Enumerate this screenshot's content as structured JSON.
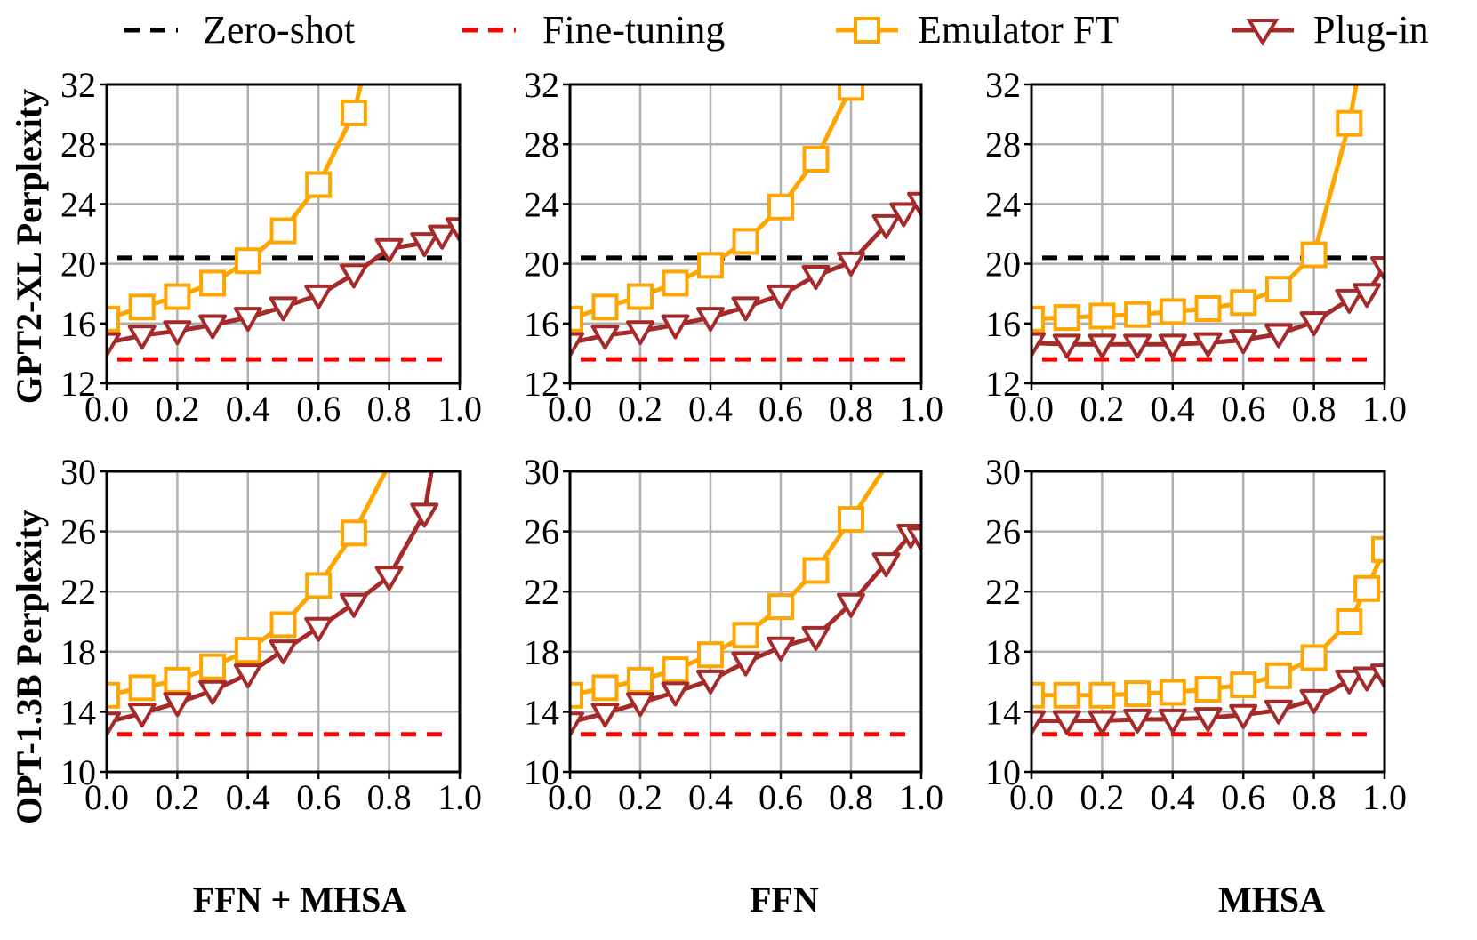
{
  "legend": [
    {
      "key": "zero_shot",
      "label": "Zero-shot"
    },
    {
      "key": "fine_tuning",
      "label": "Fine-tuning"
    },
    {
      "key": "emulator_ft",
      "label": "Emulator FT"
    },
    {
      "key": "plug_in",
      "label": "Plug-in"
    }
  ],
  "colors": {
    "zero_shot": "#000000",
    "fine_tuning": "#ff0000",
    "emulator_ft": "#ffa500",
    "plug_in": "#a52a2a",
    "grid": "#b0b0b0"
  },
  "row_labels": [
    "GPT2-XL Perplexity",
    "OPT-1.3B Perplexity"
  ],
  "column_labels": [
    "FFN + MHSA",
    "FFN",
    "MHSA"
  ],
  "chart_data": [
    {
      "type": "line",
      "title": "",
      "xlabel": "",
      "ylabel": "GPT2-XL Perplexity",
      "xlim": [
        0.0,
        1.0
      ],
      "ylim": [
        12,
        32
      ],
      "xticks": [
        0.0,
        0.2,
        0.4,
        0.6,
        0.8,
        1.0
      ],
      "xtick_labels": [
        "0.0",
        "0.2",
        "0.4",
        "0.6",
        "0.8",
        "1.0"
      ],
      "yticks": [
        12,
        16,
        20,
        24,
        28,
        32
      ],
      "ytick_labels": [
        "12",
        "16",
        "20",
        "24",
        "28",
        "32"
      ],
      "grid": true,
      "legend_position": "top",
      "reference_lines": [
        {
          "series": "Zero-shot",
          "y": 20.4
        },
        {
          "series": "Fine-tuning",
          "y": 13.6
        }
      ],
      "series": [
        {
          "name": "Emulator FT",
          "marker": "square",
          "x": [
            0.0,
            0.1,
            0.2,
            0.3,
            0.4,
            0.5,
            0.6,
            0.7,
            0.72
          ],
          "y": [
            16.3,
            17.1,
            17.8,
            18.7,
            20.2,
            22.2,
            25.3,
            30.1,
            32.0
          ],
          "markers_at": [
            0,
            1,
            2,
            3,
            4,
            5,
            6,
            7
          ]
        },
        {
          "name": "Plug-in",
          "marker": "triangle-down",
          "x": [
            0.0,
            0.1,
            0.2,
            0.3,
            0.4,
            0.5,
            0.6,
            0.7,
            0.8,
            0.9,
            0.95,
            1.0
          ],
          "y": [
            14.7,
            15.2,
            15.5,
            15.9,
            16.4,
            17.1,
            17.9,
            19.3,
            21.0,
            21.4,
            21.9,
            22.4
          ]
        }
      ]
    },
    {
      "type": "line",
      "title": "",
      "xlabel": "",
      "ylabel": "",
      "xlim": [
        0.0,
        1.0
      ],
      "ylim": [
        12,
        32
      ],
      "xticks": [
        0.0,
        0.2,
        0.4,
        0.6,
        0.8,
        1.0
      ],
      "xtick_labels": [
        "0.0",
        "0.2",
        "0.4",
        "0.6",
        "0.8",
        "1.0"
      ],
      "yticks": [
        12,
        16,
        20,
        24,
        28,
        32
      ],
      "ytick_labels": [
        "12",
        "16",
        "20",
        "24",
        "28",
        "32"
      ],
      "grid": true,
      "legend_position": "top",
      "reference_lines": [
        {
          "series": "Zero-shot",
          "y": 20.4
        },
        {
          "series": "Fine-tuning",
          "y": 13.6
        }
      ],
      "series": [
        {
          "name": "Emulator FT",
          "marker": "square",
          "x": [
            0.0,
            0.1,
            0.2,
            0.3,
            0.4,
            0.5,
            0.6,
            0.7,
            0.8
          ],
          "y": [
            16.3,
            17.1,
            17.8,
            18.7,
            19.9,
            21.5,
            23.8,
            27.0,
            31.8
          ]
        },
        {
          "name": "Plug-in",
          "marker": "triangle-down",
          "x": [
            0.0,
            0.1,
            0.2,
            0.3,
            0.4,
            0.5,
            0.6,
            0.7,
            0.8,
            0.9,
            0.95,
            1.0
          ],
          "y": [
            14.7,
            15.2,
            15.5,
            15.9,
            16.4,
            17.1,
            17.9,
            19.2,
            20.1,
            22.6,
            23.4,
            24.1
          ]
        }
      ]
    },
    {
      "type": "line",
      "title": "",
      "xlabel": "",
      "ylabel": "",
      "xlim": [
        0.0,
        1.0
      ],
      "ylim": [
        12,
        32
      ],
      "xticks": [
        0.0,
        0.2,
        0.4,
        0.6,
        0.8,
        1.0
      ],
      "xtick_labels": [
        "0.0",
        "0.2",
        "0.4",
        "0.6",
        "0.8",
        "1.0"
      ],
      "yticks": [
        12,
        16,
        20,
        24,
        28,
        32
      ],
      "ytick_labels": [
        "12",
        "16",
        "20",
        "24",
        "28",
        "32"
      ],
      "grid": true,
      "legend_position": "top",
      "reference_lines": [
        {
          "series": "Zero-shot",
          "y": 20.4
        },
        {
          "series": "Fine-tuning",
          "y": 13.6
        }
      ],
      "series": [
        {
          "name": "Emulator FT",
          "marker": "square",
          "x": [
            0.0,
            0.1,
            0.2,
            0.3,
            0.4,
            0.5,
            0.6,
            0.7,
            0.8,
            0.9,
            0.92
          ],
          "y": [
            16.3,
            16.4,
            16.5,
            16.6,
            16.8,
            17.0,
            17.4,
            18.3,
            20.6,
            29.4,
            32.0
          ],
          "markers_at": [
            0,
            1,
            2,
            3,
            4,
            5,
            6,
            7,
            8,
            9
          ]
        },
        {
          "name": "Plug-in",
          "marker": "triangle-down",
          "x": [
            0.0,
            0.1,
            0.2,
            0.3,
            0.4,
            0.5,
            0.6,
            0.7,
            0.8,
            0.9,
            0.95,
            1.0
          ],
          "y": [
            14.7,
            14.6,
            14.6,
            14.6,
            14.6,
            14.7,
            14.9,
            15.3,
            16.1,
            17.6,
            18.0,
            19.8
          ]
        }
      ]
    },
    {
      "type": "line",
      "title": "",
      "xlabel": "FFN + MHSA",
      "ylabel": "OPT-1.3B Perplexity",
      "xlim": [
        0.0,
        1.0
      ],
      "ylim": [
        10,
        30
      ],
      "xticks": [
        0.0,
        0.2,
        0.4,
        0.6,
        0.8,
        1.0
      ],
      "xtick_labels": [
        "0.0",
        "0.2",
        "0.4",
        "0.6",
        "0.8",
        "1.0"
      ],
      "yticks": [
        10,
        14,
        18,
        22,
        26,
        30
      ],
      "ytick_labels": [
        "10",
        "14",
        "18",
        "22",
        "26",
        "30"
      ],
      "grid": true,
      "legend_position": "top",
      "reference_lines": [
        {
          "series": "Fine-tuning",
          "y": 12.5
        }
      ],
      "series": [
        {
          "name": "Emulator FT",
          "marker": "square",
          "x": [
            0.0,
            0.1,
            0.2,
            0.3,
            0.4,
            0.5,
            0.6,
            0.7,
            0.79
          ],
          "y": [
            15.1,
            15.6,
            16.1,
            17.0,
            18.1,
            19.8,
            22.4,
            25.9,
            30.0
          ],
          "markers_at": [
            0,
            1,
            2,
            3,
            4,
            5,
            6,
            7
          ]
        },
        {
          "name": "Plug-in",
          "marker": "triangle-down",
          "x": [
            0.0,
            0.1,
            0.2,
            0.3,
            0.4,
            0.5,
            0.6,
            0.7,
            0.8,
            0.9,
            0.92
          ],
          "y": [
            13.3,
            13.9,
            14.6,
            15.4,
            16.5,
            18.1,
            19.6,
            21.2,
            23.0,
            27.2,
            30.0
          ],
          "markers_at": [
            0,
            1,
            2,
            3,
            4,
            5,
            6,
            7,
            8,
            9
          ]
        }
      ]
    },
    {
      "type": "line",
      "title": "",
      "xlabel": "FFN",
      "ylabel": "",
      "xlim": [
        0.0,
        1.0
      ],
      "ylim": [
        10,
        30
      ],
      "xticks": [
        0.0,
        0.2,
        0.4,
        0.6,
        0.8,
        1.0
      ],
      "xtick_labels": [
        "0.0",
        "0.2",
        "0.4",
        "0.6",
        "0.8",
        "1.0"
      ],
      "yticks": [
        10,
        14,
        18,
        22,
        26,
        30
      ],
      "ytick_labels": [
        "10",
        "14",
        "18",
        "22",
        "26",
        "30"
      ],
      "grid": true,
      "legend_position": "top",
      "reference_lines": [
        {
          "series": "Fine-tuning",
          "y": 12.5
        }
      ],
      "series": [
        {
          "name": "Emulator FT",
          "marker": "square",
          "x": [
            0.0,
            0.1,
            0.2,
            0.3,
            0.4,
            0.5,
            0.6,
            0.7,
            0.8,
            0.89
          ],
          "y": [
            15.1,
            15.6,
            16.1,
            16.8,
            17.8,
            19.1,
            21.0,
            23.4,
            26.8,
            30.0
          ],
          "markers_at": [
            0,
            1,
            2,
            3,
            4,
            5,
            6,
            7,
            8
          ]
        },
        {
          "name": "Plug-in",
          "marker": "triangle-down",
          "x": [
            0.0,
            0.1,
            0.2,
            0.3,
            0.4,
            0.5,
            0.6,
            0.7,
            0.8,
            0.9,
            0.97,
            1.0
          ],
          "y": [
            13.3,
            13.9,
            14.6,
            15.3,
            16.1,
            17.3,
            18.3,
            19.0,
            21.2,
            23.9,
            25.8,
            25.6
          ]
        }
      ]
    },
    {
      "type": "line",
      "title": "",
      "xlabel": "MHSA",
      "ylabel": "",
      "xlim": [
        0.0,
        1.0
      ],
      "ylim": [
        10,
        30
      ],
      "xticks": [
        0.0,
        0.2,
        0.4,
        0.6,
        0.8,
        1.0
      ],
      "xtick_labels": [
        "0.0",
        "0.2",
        "0.4",
        "0.6",
        "0.8",
        "1.0"
      ],
      "yticks": [
        10,
        14,
        18,
        22,
        26,
        30
      ],
      "ytick_labels": [
        "10",
        "14",
        "18",
        "22",
        "26",
        "30"
      ],
      "grid": true,
      "legend_position": "top",
      "reference_lines": [
        {
          "series": "Fine-tuning",
          "y": 12.5
        }
      ],
      "series": [
        {
          "name": "Emulator FT",
          "marker": "square",
          "x": [
            0.0,
            0.1,
            0.2,
            0.3,
            0.4,
            0.5,
            0.6,
            0.7,
            0.8,
            0.9,
            0.95,
            1.0
          ],
          "y": [
            15.1,
            15.1,
            15.1,
            15.2,
            15.3,
            15.5,
            15.8,
            16.4,
            17.6,
            20.0,
            22.2,
            24.8
          ]
        },
        {
          "name": "Plug-in",
          "marker": "triangle-down",
          "x": [
            0.0,
            0.1,
            0.2,
            0.3,
            0.4,
            0.5,
            0.6,
            0.7,
            0.8,
            0.9,
            0.95,
            1.0
          ],
          "y": [
            13.4,
            13.4,
            13.4,
            13.5,
            13.5,
            13.6,
            13.8,
            14.1,
            14.8,
            16.1,
            16.3,
            16.5
          ]
        }
      ]
    }
  ]
}
